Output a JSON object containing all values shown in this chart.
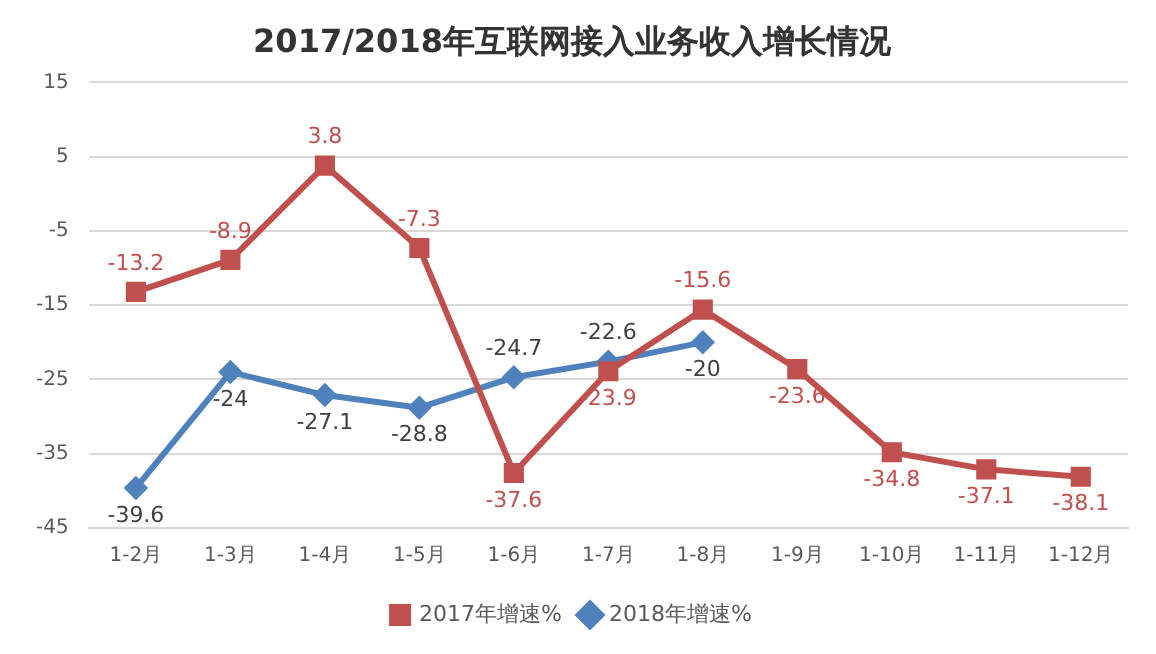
{
  "chart_data": {
    "type": "line",
    "title": "2017/2018年互联网接入业务收入增长情况",
    "categories": [
      "1-2月",
      "1-3月",
      "1-4月",
      "1-5月",
      "1-6月",
      "1-7月",
      "1-8月",
      "1-9月",
      "1-10月",
      "1-11月",
      "1-12月"
    ],
    "series": [
      {
        "name": "2017年增速%",
        "color": "#c0504d",
        "marker": "square",
        "values": [
          -13.2,
          -8.9,
          3.8,
          -7.3,
          -37.6,
          -23.9,
          -15.6,
          -23.6,
          -34.8,
          -37.1,
          -38.1
        ]
      },
      {
        "name": "2018年增速%",
        "color": "#4f81bd",
        "marker": "diamond",
        "values": [
          -39.6,
          -24,
          -27.1,
          -28.8,
          -24.7,
          -22.6,
          -20,
          null,
          null,
          null,
          null
        ]
      }
    ],
    "ylim": [
      -45,
      15
    ],
    "yticks": [
      -45,
      -35,
      -25,
      -15,
      -5,
      5,
      15
    ],
    "grid": "y",
    "legend": "bottom",
    "data_labels": true,
    "line_style": "solid"
  }
}
